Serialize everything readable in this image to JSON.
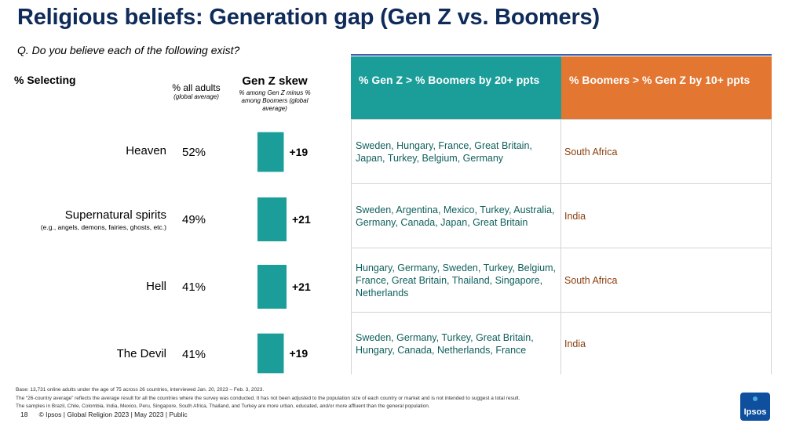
{
  "title": "Religious beliefs: Generation gap (Gen Z vs. Boomers)",
  "question": "Q. Do you believe each of the following exist?",
  "selecting_label": "% Selecting",
  "col_all_adults": {
    "header": "% all adults",
    "sub": "(global average)"
  },
  "col_skew": {
    "header": "Gen Z skew",
    "sub": "% among Gen Z minus % among Boomers (global average)"
  },
  "rows": [
    {
      "label": "Heaven",
      "sublabel": "",
      "all_adults": "52%"
    },
    {
      "label": "Supernatural spirits",
      "sublabel": "(e.g., angels, demons, fairies, ghosts, etc.)",
      "all_adults": "49%"
    },
    {
      "label": "Hell",
      "sublabel": "",
      "all_adults": "41%"
    },
    {
      "label": "The Devil",
      "sublabel": "",
      "all_adults": "41%"
    }
  ],
  "chart_data": {
    "type": "bar",
    "orientation": "vertical",
    "categories": [
      "Heaven",
      "Supernatural spirits",
      "Hell",
      "The Devil"
    ],
    "values": [
      19,
      21,
      21,
      19
    ],
    "data_labels": [
      "+19",
      "+21",
      "+21",
      "+19"
    ],
    "title": "Gen Z skew",
    "color": "#1b9e9a"
  },
  "table": {
    "headers": {
      "genz": "% Gen Z > % Boomers by 20+ ppts",
      "boomers": "% Boomers > % Gen Z by 10+ ppts"
    },
    "header_colors": {
      "genz": "#1b9e9a",
      "boomers": "#e37631"
    },
    "rows": [
      {
        "genz": "Sweden, Hungary, France, Great Britain, Japan, Turkey, Belgium, Germany",
        "boomers": "South Africa"
      },
      {
        "genz": "Sweden, Argentina, Mexico, Turkey, Australia, Germany, Canada, Japan, Great Britain",
        "boomers": "India"
      },
      {
        "genz": "Hungary, Germany, Sweden, Turkey, Belgium, France, Great Britain, Thailand, Singapore, Netherlands",
        "boomers": "South Africa"
      },
      {
        "genz": "Sweden, Germany, Turkey, Great Britain, Hungary, Canada, Netherlands, France",
        "boomers": "India"
      }
    ]
  },
  "footnotes": [
    "Base: 13,731 online adults under the age of 75 across 26 countries, interviewed Jan. 20, 2023 – Feb. 3, 2023.",
    "The “26-country average” reflects the average result for all the countries where the survey was conducted. It has not been adjusted to the population size of each country or market and is not intended to suggest a total result.",
    "The samples in Brazil, Chile, Colombia, India, Mexico, Peru, Singapore, South Africa, Thailand, and Turkey are more urban, educated, and/or more affluent than the general population."
  ],
  "footer": {
    "page": "18",
    "text": "© Ipsos | Global Religion 2023 | May 2023 | Public"
  },
  "logo_text": "Ipsos"
}
